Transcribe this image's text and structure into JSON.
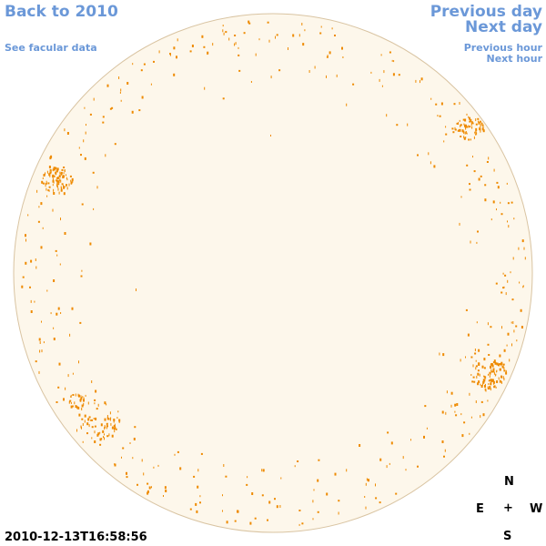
{
  "nav": {
    "back_label": "Back to 2010",
    "facular_label": "See facular data",
    "previous_day_label": "Previous day",
    "next_day_label": "Next day",
    "previous_hour_label": "Previous hour",
    "next_hour_label": "Next hour"
  },
  "compass": {
    "north": "N",
    "east": "E",
    "center": "+",
    "west": "W",
    "south": "S"
  },
  "timestamp": "2010-12-13T16:58:56",
  "colors": {
    "link": "#6b98d8",
    "disk_fill": "#fdf7eb",
    "disk_edge": "#d9c4a2",
    "facula": "#ee8a00",
    "text": "#000000"
  }
}
